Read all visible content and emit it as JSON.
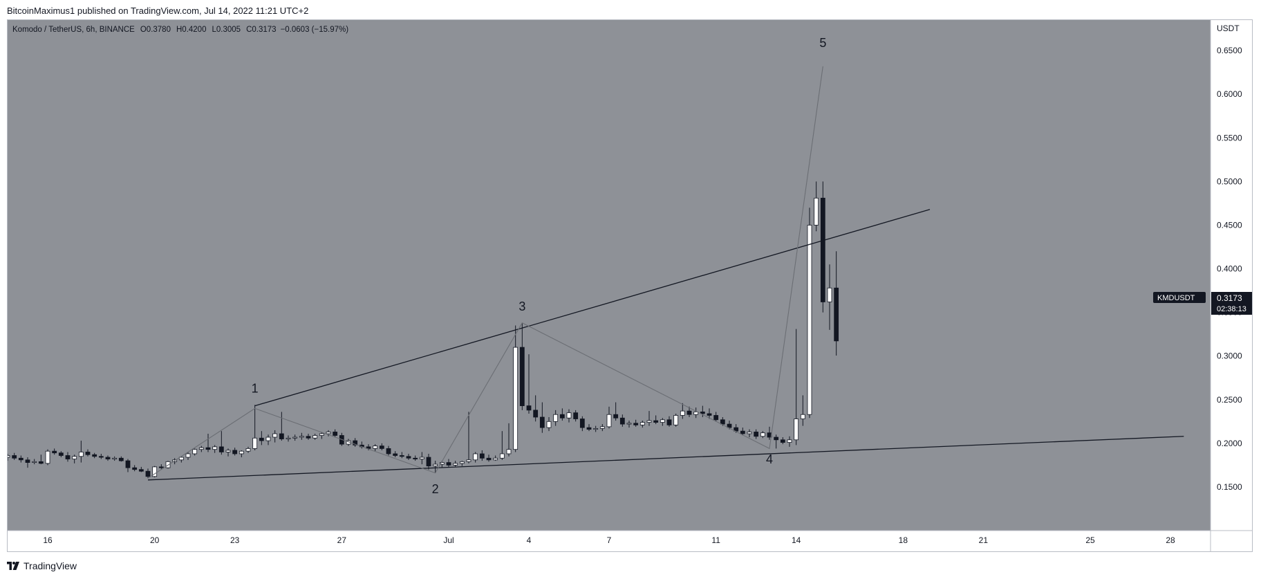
{
  "header": {
    "publisher": "BitcoinMaximus1 published on TradingView.com, Jul 14, 2022 11:21 UTC+2"
  },
  "footer": {
    "brand": "TradingView"
  },
  "colors": {
    "plot_bg": "#8e9197",
    "up_candle": "#ffffff",
    "down_candle": "#131722",
    "trendline": "#131722",
    "wave_line": "#6b6e74",
    "price_label_bg": "#131722"
  },
  "chart_data": {
    "type": "candlestick",
    "legend": {
      "symbol": "Komodo / TetherUS, 6h, BINANCE",
      "o_key": "O",
      "o_val": "0.3780",
      "h_key": "H",
      "h_val": "0.4200",
      "l_key": "L",
      "l_val": "0.3005",
      "c_key": "C",
      "c_val": "0.3173",
      "change": "−0.0603 (−15.97%)"
    },
    "y_unit": "USDT",
    "y_ticks": [
      "0.1500",
      "0.2000",
      "0.2500",
      "0.3000",
      "0.3500",
      "0.4000",
      "0.4500",
      "0.5000",
      "0.5500",
      "0.6000",
      "0.6500"
    ],
    "ylim": [
      0.1,
      0.685
    ],
    "x_ticks": [
      "16",
      "20",
      "23",
      "27",
      "Jul",
      "4",
      "7",
      "11",
      "14",
      "18",
      "21",
      "25",
      "28"
    ],
    "x_tick_days": [
      0,
      4,
      7,
      11,
      15,
      18,
      21,
      25,
      28,
      32,
      35,
      39,
      42
    ],
    "x_axis_note": "x values are days from Jun 16, 2022 00:00",
    "xlim": [
      -1.5,
      43.5
    ],
    "price_label": {
      "symbol": "KMDUSDT",
      "price": "0.3173",
      "countdown": "02:38:13"
    },
    "candles": [
      [
        -1.5,
        0.184,
        0.188,
        0.18,
        0.186
      ],
      [
        -1.25,
        0.186,
        0.189,
        0.181,
        0.183
      ],
      [
        -1.0,
        0.183,
        0.186,
        0.178,
        0.181
      ],
      [
        -0.75,
        0.181,
        0.184,
        0.172,
        0.178
      ],
      [
        -0.5,
        0.178,
        0.182,
        0.176,
        0.179
      ],
      [
        -0.25,
        0.179,
        0.187,
        0.176,
        0.177
      ],
      [
        0.0,
        0.177,
        0.193,
        0.175,
        0.191
      ],
      [
        0.25,
        0.191,
        0.194,
        0.187,
        0.189
      ],
      [
        0.5,
        0.189,
        0.191,
        0.184,
        0.186
      ],
      [
        0.75,
        0.186,
        0.19,
        0.179,
        0.182
      ],
      [
        1.0,
        0.182,
        0.187,
        0.177,
        0.185
      ],
      [
        1.25,
        0.185,
        0.203,
        0.178,
        0.19
      ],
      [
        1.5,
        0.19,
        0.193,
        0.185,
        0.187
      ],
      [
        1.75,
        0.187,
        0.189,
        0.183,
        0.185
      ],
      [
        2.0,
        0.185,
        0.188,
        0.182,
        0.184
      ],
      [
        2.25,
        0.184,
        0.186,
        0.18,
        0.182
      ],
      [
        2.5,
        0.182,
        0.185,
        0.18,
        0.183
      ],
      [
        2.75,
        0.183,
        0.185,
        0.179,
        0.18
      ],
      [
        3.0,
        0.18,
        0.182,
        0.167,
        0.172
      ],
      [
        3.25,
        0.172,
        0.175,
        0.168,
        0.17
      ],
      [
        3.5,
        0.17,
        0.173,
        0.167,
        0.168
      ],
      [
        3.75,
        0.168,
        0.171,
        0.16,
        0.162
      ],
      [
        4.0,
        0.162,
        0.174,
        0.161,
        0.173
      ],
      [
        4.25,
        0.173,
        0.176,
        0.17,
        0.172
      ],
      [
        4.5,
        0.172,
        0.18,
        0.171,
        0.179
      ],
      [
        4.75,
        0.179,
        0.183,
        0.176,
        0.181
      ],
      [
        5.0,
        0.181,
        0.185,
        0.178,
        0.184
      ],
      [
        5.25,
        0.184,
        0.19,
        0.181,
        0.188
      ],
      [
        5.5,
        0.188,
        0.194,
        0.186,
        0.193
      ],
      [
        5.75,
        0.193,
        0.197,
        0.19,
        0.195
      ],
      [
        6.0,
        0.195,
        0.211,
        0.19,
        0.193
      ],
      [
        6.25,
        0.193,
        0.198,
        0.189,
        0.196
      ],
      [
        6.5,
        0.196,
        0.214,
        0.187,
        0.19
      ],
      [
        6.75,
        0.19,
        0.194,
        0.185,
        0.192
      ],
      [
        7.0,
        0.192,
        0.195,
        0.186,
        0.188
      ],
      [
        7.25,
        0.188,
        0.192,
        0.184,
        0.191
      ],
      [
        7.5,
        0.191,
        0.196,
        0.189,
        0.194
      ],
      [
        7.75,
        0.194,
        0.244,
        0.192,
        0.206
      ],
      [
        8.0,
        0.206,
        0.214,
        0.198,
        0.203
      ],
      [
        8.25,
        0.203,
        0.21,
        0.198,
        0.207
      ],
      [
        8.5,
        0.207,
        0.215,
        0.201,
        0.211
      ],
      [
        8.75,
        0.211,
        0.236,
        0.203,
        0.205
      ],
      [
        9.0,
        0.205,
        0.209,
        0.202,
        0.206
      ],
      [
        9.25,
        0.206,
        0.21,
        0.203,
        0.207
      ],
      [
        9.5,
        0.207,
        0.212,
        0.204,
        0.208
      ],
      [
        9.75,
        0.208,
        0.211,
        0.204,
        0.206
      ],
      [
        10.0,
        0.206,
        0.211,
        0.204,
        0.209
      ],
      [
        10.25,
        0.209,
        0.213,
        0.205,
        0.211
      ],
      [
        10.5,
        0.211,
        0.215,
        0.208,
        0.213
      ],
      [
        10.75,
        0.213,
        0.216,
        0.207,
        0.209
      ],
      [
        11.0,
        0.209,
        0.212,
        0.197,
        0.199
      ],
      [
        11.25,
        0.199,
        0.205,
        0.197,
        0.203
      ],
      [
        11.5,
        0.203,
        0.206,
        0.196,
        0.198
      ],
      [
        11.75,
        0.198,
        0.202,
        0.194,
        0.196
      ],
      [
        12.0,
        0.196,
        0.199,
        0.192,
        0.194
      ],
      [
        12.25,
        0.194,
        0.199,
        0.191,
        0.197
      ],
      [
        12.5,
        0.197,
        0.2,
        0.192,
        0.194
      ],
      [
        12.75,
        0.194,
        0.197,
        0.186,
        0.188
      ],
      [
        13.0,
        0.188,
        0.191,
        0.184,
        0.186
      ],
      [
        13.25,
        0.186,
        0.19,
        0.183,
        0.185
      ],
      [
        13.5,
        0.185,
        0.188,
        0.181,
        0.183
      ],
      [
        13.75,
        0.183,
        0.186,
        0.18,
        0.182
      ],
      [
        14.0,
        0.182,
        0.19,
        0.176,
        0.184
      ],
      [
        14.25,
        0.184,
        0.188,
        0.17,
        0.174
      ],
      [
        14.5,
        0.174,
        0.18,
        0.166,
        0.176
      ],
      [
        14.75,
        0.176,
        0.18,
        0.172,
        0.178
      ],
      [
        15.0,
        0.178,
        0.182,
        0.173,
        0.175
      ],
      [
        15.25,
        0.175,
        0.18,
        0.173,
        0.177
      ],
      [
        15.5,
        0.177,
        0.18,
        0.174,
        0.179
      ],
      [
        15.75,
        0.179,
        0.236,
        0.177,
        0.181
      ],
      [
        16.0,
        0.181,
        0.19,
        0.178,
        0.188
      ],
      [
        16.25,
        0.188,
        0.192,
        0.18,
        0.183
      ],
      [
        16.5,
        0.183,
        0.187,
        0.179,
        0.181
      ],
      [
        16.75,
        0.181,
        0.186,
        0.18,
        0.183
      ],
      [
        17.0,
        0.183,
        0.214,
        0.181,
        0.188
      ],
      [
        17.25,
        0.188,
        0.223,
        0.185,
        0.193
      ],
      [
        17.5,
        0.193,
        0.335,
        0.19,
        0.31
      ],
      [
        17.75,
        0.31,
        0.338,
        0.238,
        0.243
      ],
      [
        18.0,
        0.243,
        0.302,
        0.234,
        0.238
      ],
      [
        18.25,
        0.238,
        0.255,
        0.225,
        0.23
      ],
      [
        18.5,
        0.23,
        0.247,
        0.212,
        0.218
      ],
      [
        18.75,
        0.218,
        0.23,
        0.214,
        0.225
      ],
      [
        19.0,
        0.225,
        0.238,
        0.22,
        0.233
      ],
      [
        19.25,
        0.233,
        0.24,
        0.226,
        0.229
      ],
      [
        19.5,
        0.229,
        0.239,
        0.224,
        0.235
      ],
      [
        19.75,
        0.235,
        0.238,
        0.225,
        0.228
      ],
      [
        20.0,
        0.228,
        0.231,
        0.214,
        0.218
      ],
      [
        20.25,
        0.218,
        0.222,
        0.214,
        0.216
      ],
      [
        20.5,
        0.216,
        0.22,
        0.213,
        0.217
      ],
      [
        20.75,
        0.217,
        0.222,
        0.214,
        0.219
      ],
      [
        21.0,
        0.219,
        0.242,
        0.217,
        0.233
      ],
      [
        21.25,
        0.233,
        0.247,
        0.226,
        0.229
      ],
      [
        21.5,
        0.229,
        0.233,
        0.219,
        0.222
      ],
      [
        21.75,
        0.222,
        0.226,
        0.218,
        0.223
      ],
      [
        22.0,
        0.223,
        0.227,
        0.219,
        0.221
      ],
      [
        22.25,
        0.221,
        0.226,
        0.218,
        0.224
      ],
      [
        22.5,
        0.224,
        0.237,
        0.22,
        0.226
      ],
      [
        22.75,
        0.226,
        0.232,
        0.222,
        0.224
      ],
      [
        23.0,
        0.224,
        0.229,
        0.22,
        0.227
      ],
      [
        23.25,
        0.227,
        0.231,
        0.219,
        0.221
      ],
      [
        23.5,
        0.221,
        0.234,
        0.219,
        0.232
      ],
      [
        23.75,
        0.232,
        0.246,
        0.228,
        0.237
      ],
      [
        24.0,
        0.237,
        0.242,
        0.23,
        0.233
      ],
      [
        24.25,
        0.233,
        0.241,
        0.229,
        0.236
      ],
      [
        24.5,
        0.236,
        0.243,
        0.23,
        0.234
      ],
      [
        24.75,
        0.234,
        0.24,
        0.228,
        0.232
      ],
      [
        25.0,
        0.232,
        0.236,
        0.225,
        0.227
      ],
      [
        25.25,
        0.227,
        0.23,
        0.22,
        0.222
      ],
      [
        25.5,
        0.222,
        0.226,
        0.216,
        0.218
      ],
      [
        25.75,
        0.218,
        0.222,
        0.212,
        0.214
      ],
      [
        26.0,
        0.214,
        0.218,
        0.209,
        0.211
      ],
      [
        26.25,
        0.211,
        0.216,
        0.207,
        0.213
      ],
      [
        26.5,
        0.213,
        0.216,
        0.205,
        0.208
      ],
      [
        26.75,
        0.208,
        0.214,
        0.206,
        0.212
      ],
      [
        27.0,
        0.212,
        0.219,
        0.204,
        0.207
      ],
      [
        27.25,
        0.207,
        0.21,
        0.194,
        0.204
      ],
      [
        27.5,
        0.204,
        0.207,
        0.199,
        0.201
      ],
      [
        27.75,
        0.201,
        0.208,
        0.196,
        0.204
      ],
      [
        28.0,
        0.204,
        0.331,
        0.198,
        0.228
      ],
      [
        28.25,
        0.228,
        0.255,
        0.22,
        0.233
      ],
      [
        28.5,
        0.233,
        0.47,
        0.229,
        0.45
      ],
      [
        28.75,
        0.45,
        0.5,
        0.443,
        0.481
      ],
      [
        29.0,
        0.481,
        0.5,
        0.35,
        0.362
      ],
      [
        29.25,
        0.362,
        0.405,
        0.33,
        0.378
      ],
      [
        29.5,
        0.378,
        0.42,
        0.3005,
        0.3173
      ]
    ],
    "overlay_lines": [
      {
        "name": "upper-trendline",
        "kind": "trend",
        "from": [
          7.75,
          0.243
        ],
        "to": [
          33.0,
          0.468
        ]
      },
      {
        "name": "lower-trendline",
        "kind": "trend",
        "from": [
          3.75,
          0.158
        ],
        "to": [
          42.5,
          0.208
        ]
      },
      {
        "name": "wave-path",
        "kind": "wave",
        "points": [
          [
            3.75,
            0.16
          ],
          [
            7.75,
            0.24
          ],
          [
            14.5,
            0.166
          ],
          [
            17.75,
            0.338
          ],
          [
            27.0,
            0.194
          ],
          [
            29.0,
            0.632
          ]
        ]
      }
    ],
    "wave_labels": [
      {
        "label": "1",
        "x": 7.75,
        "y": 0.258
      },
      {
        "label": "2",
        "x": 14.5,
        "y": 0.143
      },
      {
        "label": "3",
        "x": 17.75,
        "y": 0.352
      },
      {
        "label": "4",
        "x": 27.0,
        "y": 0.177
      },
      {
        "label": "5",
        "x": 29.0,
        "y": 0.654
      }
    ]
  }
}
